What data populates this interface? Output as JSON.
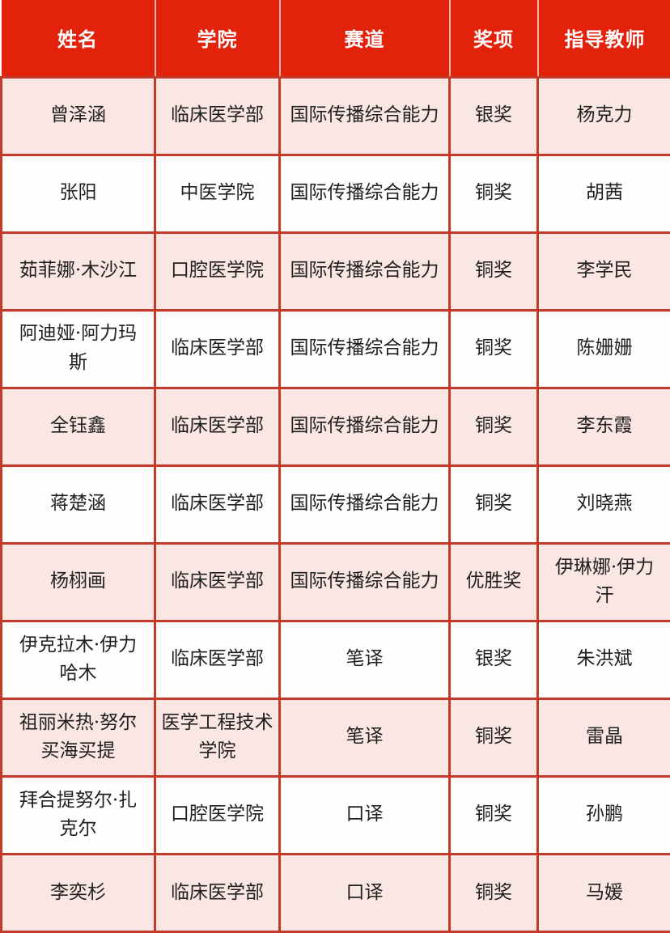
{
  "table": {
    "headers": {
      "name": "姓名",
      "college": "学院",
      "track": "赛道",
      "award": "奖项",
      "teacher": "指导教师"
    },
    "rows": [
      {
        "name": "曾泽涵",
        "college": "临床医学部",
        "track": "国际传播综合能力",
        "award": "银奖",
        "teacher": "杨克力"
      },
      {
        "name": "张阳",
        "college": "中医学院",
        "track": "国际传播综合能力",
        "award": "铜奖",
        "teacher": "胡茜"
      },
      {
        "name": "茹菲娜·木沙江",
        "college": "口腔医学院",
        "track": "国际传播综合能力",
        "award": "铜奖",
        "teacher": "李学民"
      },
      {
        "name": "阿迪娅·阿力玛斯",
        "college": "临床医学部",
        "track": "国际传播综合能力",
        "award": "铜奖",
        "teacher": "陈姗姗"
      },
      {
        "name": "全钰鑫",
        "college": "临床医学部",
        "track": "国际传播综合能力",
        "award": "铜奖",
        "teacher": "李东霞"
      },
      {
        "name": "蒋楚涵",
        "college": "临床医学部",
        "track": "国际传播综合能力",
        "award": "铜奖",
        "teacher": "刘晓燕"
      },
      {
        "name": "杨栩画",
        "college": "临床医学部",
        "track": "国际传播综合能力",
        "award": "优胜奖",
        "teacher": "伊琳娜·伊力汗"
      },
      {
        "name": "伊克拉木·伊力哈木",
        "college": "临床医学部",
        "track": "笔译",
        "award": "银奖",
        "teacher": "朱洪斌"
      },
      {
        "name": "祖丽米热·努尔买海买提",
        "college": "医学工程技术学院",
        "track": "笔译",
        "award": "铜奖",
        "teacher": "雷晶"
      },
      {
        "name": "拜合提努尔·扎克尔",
        "college": "口腔医学院",
        "track": "口译",
        "award": "铜奖",
        "teacher": "孙鹏"
      },
      {
        "name": "李奕杉",
        "college": "临床医学部",
        "track": "口译",
        "award": "铜奖",
        "teacher": "马媛"
      }
    ]
  },
  "colors": {
    "header_bg": "#e3220c",
    "header_text": "#ffffff",
    "row_pink": "#fae6e2",
    "row_white": "#fffefd",
    "border_red": "#c43a2a",
    "header_separator": "#f3b4aa",
    "body_text": "#1f1f1f"
  }
}
